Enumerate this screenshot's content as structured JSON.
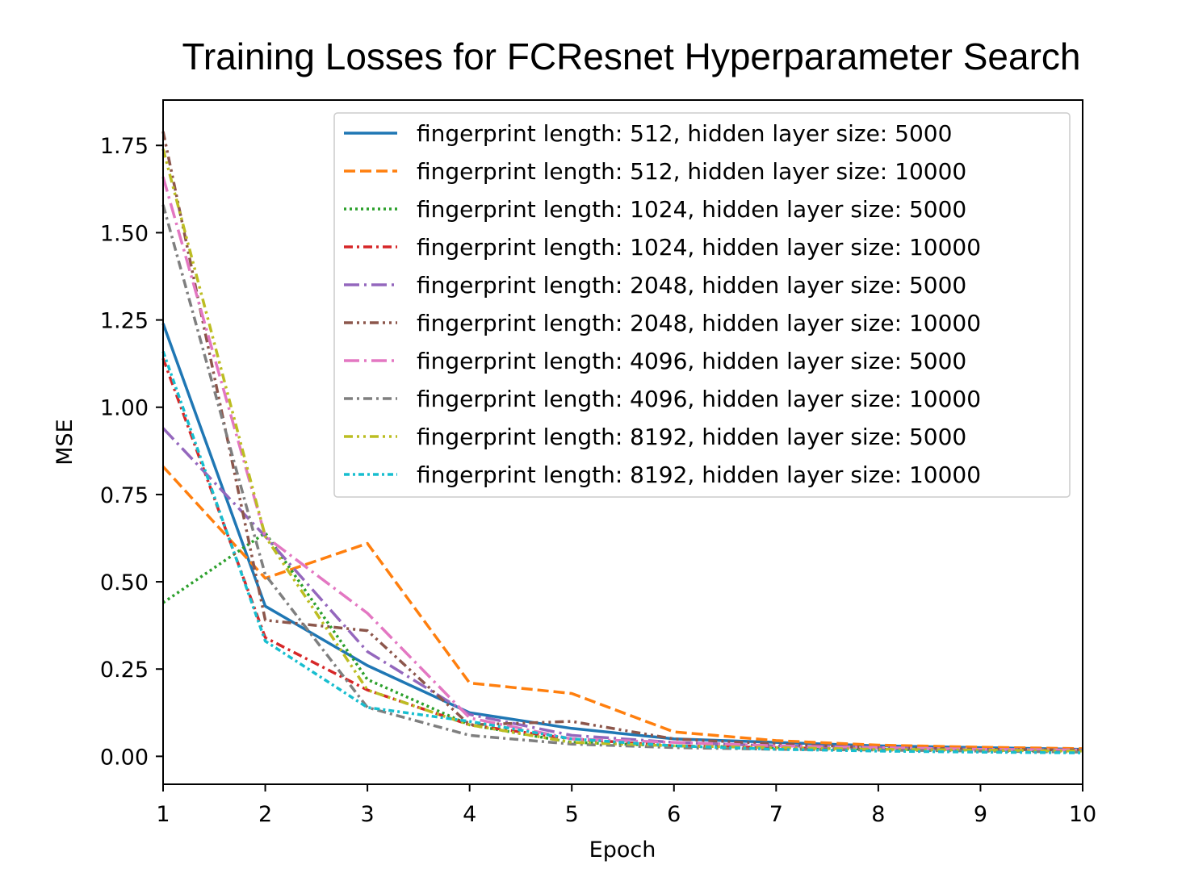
{
  "chart_data": {
    "type": "line",
    "title": "Training Losses for FCResnet Hyperparameter Search",
    "xlabel": "Epoch",
    "ylabel": "MSE",
    "xlim": [
      1,
      10
    ],
    "ylim": [
      -0.08,
      1.88
    ],
    "xticks": [
      1,
      2,
      3,
      4,
      5,
      6,
      7,
      8,
      9,
      10
    ],
    "yticks": [
      0.0,
      0.25,
      0.5,
      0.75,
      1.0,
      1.25,
      1.5,
      1.75
    ],
    "ytick_labels": [
      "0.00",
      "0.25",
      "0.50",
      "0.75",
      "1.00",
      "1.25",
      "1.50",
      "1.75"
    ],
    "grid": false,
    "legend_position": "top-right",
    "x": [
      1,
      2,
      3,
      4,
      5,
      6,
      7,
      8,
      9,
      10
    ],
    "series": [
      {
        "name": "fingerprint length: 512, hidden layer size: 5000",
        "color": "#1f77b4",
        "dash": "solid",
        "values": [
          1.24,
          0.43,
          0.26,
          0.125,
          0.08,
          0.05,
          0.04,
          0.03,
          0.025,
          0.02
        ]
      },
      {
        "name": "fingerprint length: 512, hidden layer size: 10000",
        "color": "#ff7f0e",
        "dash": "dashed",
        "values": [
          0.83,
          0.51,
          0.61,
          0.21,
          0.18,
          0.07,
          0.045,
          0.032,
          0.026,
          0.022
        ]
      },
      {
        "name": "fingerprint length: 1024, hidden layer size: 5000",
        "color": "#2ca02c",
        "dash": "dotted",
        "values": [
          0.44,
          0.64,
          0.22,
          0.09,
          0.04,
          0.03,
          0.025,
          0.02,
          0.018,
          0.015
        ]
      },
      {
        "name": "fingerprint length: 1024, hidden layer size: 10000",
        "color": "#d62728",
        "dash": "dashdot",
        "values": [
          1.14,
          0.34,
          0.19,
          0.09,
          0.05,
          0.03,
          0.025,
          0.02,
          0.017,
          0.015
        ]
      },
      {
        "name": "fingerprint length: 2048, hidden layer size: 5000",
        "color": "#9467bd",
        "dash": "longdashdot",
        "values": [
          0.94,
          0.63,
          0.3,
          0.12,
          0.06,
          0.04,
          0.03,
          0.025,
          0.02,
          0.018
        ]
      },
      {
        "name": "fingerprint length: 2048, hidden layer size: 10000",
        "color": "#8c564b",
        "dash": "dashdotdot",
        "values": [
          1.79,
          0.39,
          0.36,
          0.09,
          0.1,
          0.05,
          0.035,
          0.025,
          0.02,
          0.018
        ]
      },
      {
        "name": "fingerprint length: 4096, hidden layer size: 5000",
        "color": "#e377c2",
        "dash": "longdashdot",
        "values": [
          1.66,
          0.63,
          0.41,
          0.11,
          0.05,
          0.04,
          0.03,
          0.025,
          0.02,
          0.018
        ]
      },
      {
        "name": "fingerprint length: 4096, hidden layer size: 10000",
        "color": "#7f7f7f",
        "dash": "dashdot",
        "values": [
          1.58,
          0.52,
          0.14,
          0.06,
          0.035,
          0.025,
          0.02,
          0.018,
          0.015,
          0.012
        ]
      },
      {
        "name": "fingerprint length: 8192, hidden layer size: 5000",
        "color": "#bcbd22",
        "dash": "dashdotdot",
        "values": [
          1.74,
          0.63,
          0.19,
          0.09,
          0.04,
          0.03,
          0.025,
          0.02,
          0.018,
          0.015
        ]
      },
      {
        "name": "fingerprint length: 8192, hidden layer size: 10000",
        "color": "#17becf",
        "dash": "densedashdot",
        "values": [
          1.16,
          0.33,
          0.14,
          0.1,
          0.05,
          0.03,
          0.02,
          0.015,
          0.012,
          0.01
        ]
      }
    ]
  }
}
